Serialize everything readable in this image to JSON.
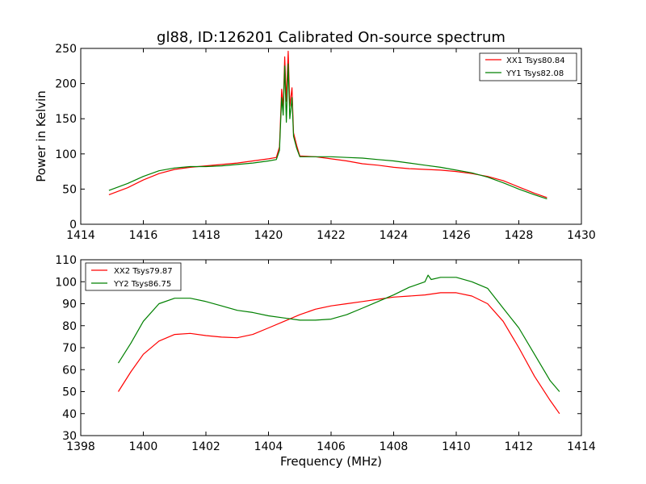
{
  "chart_data": [
    {
      "type": "line",
      "title": "gl88, ID:126201 Calibrated On-source spectrum",
      "xlabel": "",
      "ylabel": "Power in Kelvin",
      "xlim": [
        1414,
        1430
      ],
      "ylim": [
        0,
        250
      ],
      "xticks": [
        1414,
        1416,
        1418,
        1420,
        1422,
        1424,
        1426,
        1428,
        1430
      ],
      "yticks": [
        0,
        50,
        100,
        150,
        200,
        250
      ],
      "legend_position": "top-right",
      "grid": false,
      "series": [
        {
          "name": "XX1 Tsys80.84",
          "color": "#ff0000",
          "points": [
            [
              1414.9,
              42
            ],
            [
              1415.5,
              52
            ],
            [
              1416.0,
              63
            ],
            [
              1416.5,
              72
            ],
            [
              1417.0,
              78
            ],
            [
              1417.5,
              81
            ],
            [
              1418.0,
              83
            ],
            [
              1418.5,
              85
            ],
            [
              1419.0,
              87
            ],
            [
              1419.5,
              90
            ],
            [
              1420.0,
              93
            ],
            [
              1420.25,
              95
            ],
            [
              1420.35,
              110
            ],
            [
              1420.42,
              192
            ],
            [
              1420.47,
              165
            ],
            [
              1420.52,
              238
            ],
            [
              1420.57,
              175
            ],
            [
              1420.63,
              246
            ],
            [
              1420.68,
              168
            ],
            [
              1420.75,
              194
            ],
            [
              1420.8,
              130
            ],
            [
              1420.9,
              112
            ],
            [
              1421.0,
              97
            ],
            [
              1421.5,
              96
            ],
            [
              1422.0,
              93
            ],
            [
              1422.5,
              90
            ],
            [
              1423.0,
              86
            ],
            [
              1423.5,
              84
            ],
            [
              1424.0,
              81
            ],
            [
              1424.5,
              79
            ],
            [
              1425.0,
              78
            ],
            [
              1425.5,
              77
            ],
            [
              1426.0,
              75
            ],
            [
              1426.5,
              72
            ],
            [
              1427.0,
              68
            ],
            [
              1427.5,
              62
            ],
            [
              1428.0,
              53
            ],
            [
              1428.5,
              44
            ],
            [
              1428.9,
              38
            ]
          ]
        },
        {
          "name": "YY1 Tsys82.08",
          "color": "#008000",
          "points": [
            [
              1414.9,
              48
            ],
            [
              1415.5,
              58
            ],
            [
              1416.0,
              68
            ],
            [
              1416.5,
              76
            ],
            [
              1417.0,
              80
            ],
            [
              1417.5,
              82
            ],
            [
              1418.0,
              82
            ],
            [
              1418.5,
              83
            ],
            [
              1419.0,
              85
            ],
            [
              1419.5,
              87
            ],
            [
              1420.0,
              90
            ],
            [
              1420.25,
              92
            ],
            [
              1420.35,
              105
            ],
            [
              1420.42,
              180
            ],
            [
              1420.47,
              155
            ],
            [
              1420.52,
              225
            ],
            [
              1420.57,
              145
            ],
            [
              1420.63,
              228
            ],
            [
              1420.68,
              150
            ],
            [
              1420.75,
              180
            ],
            [
              1420.8,
              125
            ],
            [
              1420.9,
              108
            ],
            [
              1421.0,
              96
            ],
            [
              1421.5,
              96
            ],
            [
              1422.0,
              96
            ],
            [
              1422.5,
              95
            ],
            [
              1423.0,
              94
            ],
            [
              1423.5,
              92
            ],
            [
              1424.0,
              90
            ],
            [
              1424.5,
              87
            ],
            [
              1425.0,
              84
            ],
            [
              1425.5,
              81
            ],
            [
              1426.0,
              77
            ],
            [
              1426.5,
              73
            ],
            [
              1427.0,
              67
            ],
            [
              1427.5,
              59
            ],
            [
              1428.0,
              50
            ],
            [
              1428.5,
              42
            ],
            [
              1428.9,
              36
            ]
          ]
        }
      ]
    },
    {
      "type": "line",
      "title": "",
      "xlabel": "Frequency (MHz)",
      "ylabel": "",
      "xlim": [
        1398,
        1414
      ],
      "ylim": [
        30,
        110
      ],
      "xticks": [
        1398,
        1400,
        1402,
        1404,
        1406,
        1408,
        1410,
        1412,
        1414
      ],
      "yticks": [
        30,
        40,
        50,
        60,
        70,
        80,
        90,
        100,
        110
      ],
      "legend_position": "top-left",
      "grid": false,
      "series": [
        {
          "name": "XX2 Tsys79.87",
          "color": "#ff0000",
          "points": [
            [
              1399.2,
              50
            ],
            [
              1399.6,
              59
            ],
            [
              1400.0,
              67
            ],
            [
              1400.5,
              73
            ],
            [
              1401.0,
              76
            ],
            [
              1401.5,
              76.5
            ],
            [
              1402.0,
              75.5
            ],
            [
              1402.5,
              74.8
            ],
            [
              1403.0,
              74.5
            ],
            [
              1403.5,
              76
            ],
            [
              1404.0,
              79
            ],
            [
              1404.5,
              82
            ],
            [
              1405.0,
              85
            ],
            [
              1405.5,
              87.5
            ],
            [
              1406.0,
              89
            ],
            [
              1406.5,
              90
            ],
            [
              1407.0,
              91
            ],
            [
              1407.5,
              92
            ],
            [
              1408.0,
              93
            ],
            [
              1408.5,
              93.5
            ],
            [
              1409.0,
              94
            ],
            [
              1409.5,
              95
            ],
            [
              1410.0,
              95
            ],
            [
              1410.5,
              93.5
            ],
            [
              1411.0,
              90
            ],
            [
              1411.5,
              82
            ],
            [
              1412.0,
              70
            ],
            [
              1412.5,
              57
            ],
            [
              1413.0,
              46
            ],
            [
              1413.3,
              40
            ]
          ]
        },
        {
          "name": "YY2 Tsys86.75",
          "color": "#008000",
          "points": [
            [
              1399.2,
              63
            ],
            [
              1399.6,
              72
            ],
            [
              1400.0,
              82
            ],
            [
              1400.5,
              90
            ],
            [
              1401.0,
              92.5
            ],
            [
              1401.5,
              92.5
            ],
            [
              1402.0,
              91
            ],
            [
              1402.5,
              89
            ],
            [
              1403.0,
              87
            ],
            [
              1403.5,
              86
            ],
            [
              1404.0,
              84.5
            ],
            [
              1404.5,
              83.5
            ],
            [
              1405.0,
              82.5
            ],
            [
              1405.5,
              82.5
            ],
            [
              1406.0,
              83
            ],
            [
              1406.5,
              85
            ],
            [
              1407.0,
              88
            ],
            [
              1407.5,
              91
            ],
            [
              1408.0,
              94
            ],
            [
              1408.5,
              97.5
            ],
            [
              1409.0,
              100
            ],
            [
              1409.1,
              103
            ],
            [
              1409.2,
              101
            ],
            [
              1409.5,
              102
            ],
            [
              1410.0,
              102
            ],
            [
              1410.5,
              100
            ],
            [
              1411.0,
              97
            ],
            [
              1411.5,
              88
            ],
            [
              1412.0,
              79
            ],
            [
              1412.5,
              67
            ],
            [
              1413.0,
              55
            ],
            [
              1413.3,
              50
            ]
          ]
        }
      ]
    }
  ]
}
